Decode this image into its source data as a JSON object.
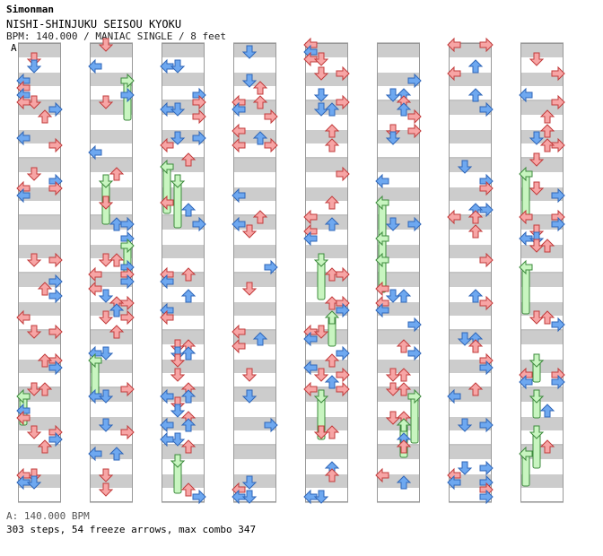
{
  "header": {
    "author": "Simonman",
    "title": "NISHI-SHINJUKU SEISOU KYOKU",
    "info": "BPM: 140.000 / MANIAC SINGLE / 8 feet",
    "section_label": "A"
  },
  "footer": {
    "bpm_line": "A: 140.000 BPM",
    "stats_line": "303 steps, 54 freeze arrows, max combo 347"
  },
  "colors": {
    "stripe": "#cccccc",
    "measure_line": "#888888",
    "arrow_red": "#f7a5a5",
    "arrow_red_stroke": "#c23b3b",
    "arrow_blue": "#6ea8f0",
    "arrow_blue_stroke": "#2f66b8",
    "arrow_pink": "#ef9ff0",
    "arrow_pink_stroke": "#a848a8",
    "freeze_fill": "#c8f5c0",
    "freeze_stroke": "#3c8a3c"
  },
  "chart": {
    "columns": 8,
    "measures_per_column": 8,
    "lanes": [
      "left",
      "down",
      "up",
      "right"
    ]
  }
}
